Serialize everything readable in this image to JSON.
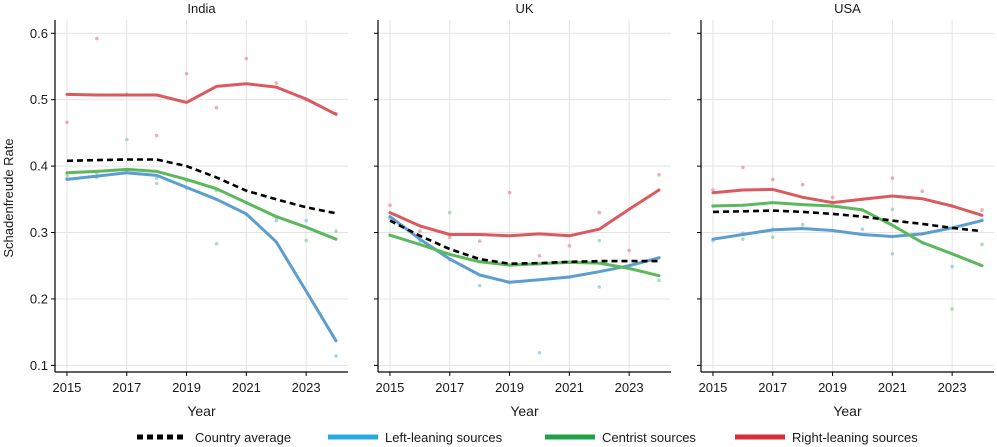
{
  "chart_data": {
    "type": "line",
    "ylabel": "Schadenfreude Rate",
    "xlabel": "Year",
    "x_ticks": [
      2015,
      2017,
      2019,
      2021,
      2023
    ],
    "y_ticks": [
      0.1,
      0.2,
      0.3,
      0.4,
      0.5,
      0.6
    ],
    "xlim": [
      2014.6,
      2024.4
    ],
    "ylim": [
      0.09,
      0.62
    ],
    "grid": true,
    "legend_position": "bottom",
    "legend": [
      {
        "key": "avg",
        "label": "Country average",
        "color": "#000000",
        "dashed": true
      },
      {
        "key": "left",
        "label": "Left-leaning sources",
        "color": "#29a9e1",
        "dashed": false
      },
      {
        "key": "centrist",
        "label": "Centrist sources",
        "color": "#1fa34a",
        "dashed": false
      },
      {
        "key": "right",
        "label": "Right-leaning sources",
        "color": "#d62f37",
        "dashed": false
      }
    ],
    "panels": [
      {
        "title": "India",
        "series": [
          {
            "key": "avg",
            "x": [
              2015,
              2016,
              2017,
              2018,
              2019,
              2020,
              2021,
              2022,
              2023,
              2024
            ],
            "y": [
              0.408,
              0.409,
              0.41,
              0.41,
              0.4,
              0.383,
              0.363,
              0.35,
              0.338,
              0.329
            ]
          },
          {
            "key": "left",
            "x": [
              2015,
              2016,
              2017,
              2018,
              2019,
              2020,
              2021,
              2022,
              2023,
              2024
            ],
            "y": [
              0.38,
              0.385,
              0.39,
              0.386,
              0.368,
              0.35,
              0.328,
              0.286,
              0.212,
              0.137
            ]
          },
          {
            "key": "centrist",
            "x": [
              2015,
              2016,
              2017,
              2018,
              2019,
              2020,
              2021,
              2022,
              2023,
              2024
            ],
            "y": [
              0.39,
              0.392,
              0.395,
              0.392,
              0.38,
              0.366,
              0.345,
              0.324,
              0.308,
              0.29
            ]
          },
          {
            "key": "right",
            "x": [
              2015,
              2016,
              2017,
              2018,
              2019,
              2020,
              2021,
              2022,
              2023,
              2024
            ],
            "y": [
              0.508,
              0.507,
              0.507,
              0.507,
              0.496,
              0.52,
              0.524,
              0.519,
              0.501,
              0.478
            ]
          }
        ],
        "points": [
          {
            "key": "right",
            "x": [
              2015,
              2016,
              2017,
              2018,
              2019,
              2020,
              2021,
              2022,
              2023,
              2024
            ],
            "y": [
              0.466,
              0.592,
              0.508,
              0.446,
              0.539,
              0.488,
              0.562,
              0.525,
              0.5,
              0.479
            ]
          },
          {
            "key": "left",
            "x": [
              2015,
              2016,
              2017,
              2018,
              2019,
              2020,
              2021,
              2022,
              2023,
              2024
            ],
            "y": [
              0.381,
              0.383,
              0.393,
              0.382,
              0.367,
              0.283,
              0.327,
              0.318,
              0.318,
              0.114
            ]
          },
          {
            "key": "centrist",
            "x": [
              2015,
              2016,
              2017,
              2018,
              2019,
              2020,
              2021,
              2022,
              2023,
              2024
            ],
            "y": [
              0.386,
              0.39,
              0.44,
              0.374,
              0.378,
              0.363,
              0.345,
              0.323,
              0.288,
              0.302
            ]
          }
        ]
      },
      {
        "title": "UK",
        "series": [
          {
            "key": "avg",
            "x": [
              2015,
              2016,
              2017,
              2018,
              2019,
              2020,
              2021,
              2022,
              2023,
              2024
            ],
            "y": [
              0.318,
              0.295,
              0.275,
              0.26,
              0.253,
              0.254,
              0.256,
              0.257,
              0.257,
              0.257
            ]
          },
          {
            "key": "left",
            "x": [
              2015,
              2016,
              2017,
              2018,
              2019,
              2020,
              2021,
              2022,
              2023,
              2024
            ],
            "y": [
              0.324,
              0.29,
              0.26,
              0.236,
              0.225,
              0.229,
              0.233,
              0.241,
              0.25,
              0.262
            ]
          },
          {
            "key": "centrist",
            "x": [
              2015,
              2016,
              2017,
              2018,
              2019,
              2020,
              2021,
              2022,
              2023,
              2024
            ],
            "y": [
              0.296,
              0.282,
              0.267,
              0.256,
              0.251,
              0.253,
              0.255,
              0.254,
              0.246,
              0.235
            ]
          },
          {
            "key": "right",
            "x": [
              2015,
              2016,
              2017,
              2018,
              2019,
              2020,
              2021,
              2022,
              2023,
              2024
            ],
            "y": [
              0.33,
              0.31,
              0.297,
              0.297,
              0.295,
              0.298,
              0.295,
              0.305,
              0.335,
              0.364
            ]
          }
        ],
        "points": [
          {
            "key": "right",
            "x": [
              2015,
              2016,
              2017,
              2018,
              2019,
              2020,
              2021,
              2022,
              2023,
              2024
            ],
            "y": [
              0.341,
              0.302,
              0.293,
              0.287,
              0.36,
              0.265,
              0.28,
              0.33,
              0.273,
              0.387
            ]
          },
          {
            "key": "left",
            "x": [
              2015,
              2016,
              2017,
              2018,
              2019,
              2020,
              2021,
              2022,
              2023,
              2024
            ],
            "y": [
              0.322,
              0.288,
              0.259,
              0.22,
              0.225,
              0.119,
              0.233,
              0.218,
              0.25,
              0.262
            ]
          },
          {
            "key": "centrist",
            "x": [
              2015,
              2016,
              2017,
              2018,
              2019,
              2020,
              2021,
              2022,
              2023,
              2024
            ],
            "y": [
              0.296,
              0.283,
              0.33,
              0.256,
              0.251,
              0.253,
              0.256,
              0.288,
              0.246,
              0.228
            ]
          }
        ]
      },
      {
        "title": "USA",
        "series": [
          {
            "key": "avg",
            "x": [
              2015,
              2016,
              2017,
              2018,
              2019,
              2020,
              2021,
              2022,
              2023,
              2024
            ],
            "y": [
              0.331,
              0.332,
              0.333,
              0.331,
              0.328,
              0.324,
              0.318,
              0.313,
              0.307,
              0.302
            ]
          },
          {
            "key": "left",
            "x": [
              2015,
              2016,
              2017,
              2018,
              2019,
              2020,
              2021,
              2022,
              2023,
              2024
            ],
            "y": [
              0.29,
              0.297,
              0.304,
              0.306,
              0.303,
              0.297,
              0.294,
              0.298,
              0.307,
              0.318
            ]
          },
          {
            "key": "centrist",
            "x": [
              2015,
              2016,
              2017,
              2018,
              2019,
              2020,
              2021,
              2022,
              2023,
              2024
            ],
            "y": [
              0.34,
              0.341,
              0.345,
              0.342,
              0.34,
              0.334,
              0.311,
              0.285,
              0.268,
              0.25
            ]
          },
          {
            "key": "right",
            "x": [
              2015,
              2016,
              2017,
              2018,
              2019,
              2020,
              2021,
              2022,
              2023,
              2024
            ],
            "y": [
              0.36,
              0.364,
              0.365,
              0.353,
              0.345,
              0.35,
              0.355,
              0.351,
              0.34,
              0.326
            ]
          }
        ],
        "points": [
          {
            "key": "right",
            "x": [
              2015,
              2016,
              2017,
              2018,
              2019,
              2020,
              2021,
              2022,
              2023,
              2024
            ],
            "y": [
              0.364,
              0.398,
              0.38,
              0.372,
              0.353,
              0.35,
              0.382,
              0.362,
              0.34,
              0.334
            ]
          },
          {
            "key": "left",
            "x": [
              2015,
              2016,
              2017,
              2018,
              2019,
              2020,
              2021,
              2022,
              2023,
              2024
            ],
            "y": [
              0.288,
              0.299,
              0.305,
              0.306,
              0.303,
              0.305,
              0.268,
              0.298,
              0.249,
              0.319
            ]
          },
          {
            "key": "centrist",
            "x": [
              2015,
              2016,
              2017,
              2018,
              2019,
              2020,
              2021,
              2022,
              2023,
              2024
            ],
            "y": [
              0.34,
              0.29,
              0.293,
              0.312,
              0.34,
              0.334,
              0.335,
              0.285,
              0.185,
              0.282
            ]
          }
        ]
      }
    ]
  }
}
